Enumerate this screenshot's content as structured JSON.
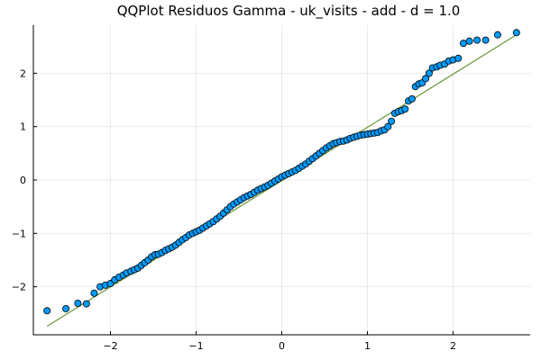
{
  "chart_data": {
    "type": "scatter",
    "title": "QQPlot Residuos Gamma - uk_visits - add - d = 1.0",
    "xlabel": "",
    "ylabel": "",
    "xlim": [
      -2.9,
      2.9
    ],
    "ylim": [
      -2.9,
      2.9
    ],
    "xticks": [
      -2,
      -1,
      0,
      1,
      2
    ],
    "yticks": [
      -2,
      -1,
      0,
      1,
      2
    ],
    "xtick_labels": [
      "−2",
      "−1",
      "0",
      "1",
      "2"
    ],
    "ytick_labels": [
      "−2",
      "−1",
      "0",
      "1",
      "2"
    ],
    "grid": true,
    "legend": "none",
    "marker_color": "#009af9",
    "reference_line_color": "#6b9a3a",
    "reference_line": {
      "x": [
        -2.74,
        2.74
      ],
      "y": [
        -2.74,
        2.72
      ]
    },
    "series": [
      {
        "x": [
          -2.74,
          -2.52,
          -2.38,
          -2.28,
          -2.19,
          -2.12,
          -2.06,
          -2.0,
          -1.95,
          -1.9,
          -1.85,
          -1.81,
          -1.76,
          -1.72,
          -1.68,
          -1.64,
          -1.6,
          -1.56,
          -1.52,
          -1.48,
          -1.44,
          -1.4,
          -1.36,
          -1.32,
          -1.28,
          -1.24,
          -1.2,
          -1.16,
          -1.12,
          -1.08,
          -1.04,
          -1.0,
          -0.96,
          -0.92,
          -0.88,
          -0.84,
          -0.8,
          -0.76,
          -0.72,
          -0.68,
          -0.64,
          -0.6,
          -0.56,
          -0.52,
          -0.48,
          -0.44,
          -0.4,
          -0.36,
          -0.32,
          -0.28,
          -0.24,
          -0.2,
          -0.16,
          -0.12,
          -0.08,
          -0.04,
          0.0,
          0.04,
          0.08,
          0.12,
          0.16,
          0.2,
          0.24,
          0.28,
          0.32,
          0.36,
          0.4,
          0.44,
          0.48,
          0.52,
          0.56,
          0.6,
          0.64,
          0.68,
          0.72,
          0.76,
          0.8,
          0.84,
          0.88,
          0.92,
          0.96,
          1.0,
          1.04,
          1.08,
          1.12,
          1.16,
          1.2,
          1.24,
          1.28,
          1.32,
          1.36,
          1.4,
          1.44,
          1.48,
          1.52,
          1.56,
          1.6,
          1.64,
          1.68,
          1.72,
          1.76,
          1.81,
          1.85,
          1.9,
          1.95,
          2.0,
          2.06,
          2.12,
          2.19,
          2.28,
          2.38,
          2.52,
          2.74
        ],
        "y": [
          -2.45,
          -2.41,
          -2.31,
          -2.32,
          -2.12,
          -2.0,
          -1.97,
          -1.94,
          -1.87,
          -1.82,
          -1.78,
          -1.74,
          -1.71,
          -1.68,
          -1.65,
          -1.6,
          -1.55,
          -1.5,
          -1.44,
          -1.4,
          -1.39,
          -1.36,
          -1.32,
          -1.29,
          -1.26,
          -1.22,
          -1.17,
          -1.12,
          -1.08,
          -1.03,
          -1.0,
          -0.97,
          -0.94,
          -0.9,
          -0.86,
          -0.82,
          -0.78,
          -0.73,
          -0.68,
          -0.62,
          -0.56,
          -0.5,
          -0.45,
          -0.41,
          -0.37,
          -0.33,
          -0.3,
          -0.27,
          -0.23,
          -0.19,
          -0.16,
          -0.13,
          -0.1,
          -0.06,
          -0.02,
          0.02,
          0.06,
          0.09,
          0.12,
          0.15,
          0.18,
          0.22,
          0.26,
          0.3,
          0.35,
          0.4,
          0.45,
          0.5,
          0.55,
          0.6,
          0.64,
          0.68,
          0.7,
          0.72,
          0.73,
          0.75,
          0.78,
          0.8,
          0.82,
          0.84,
          0.85,
          0.86,
          0.87,
          0.88,
          0.89,
          0.92,
          0.94,
          1.0,
          1.1,
          1.25,
          1.28,
          1.3,
          1.33,
          1.48,
          1.52,
          1.75,
          1.8,
          1.82,
          1.9,
          2.0,
          2.1,
          2.12,
          2.15,
          2.17,
          2.23,
          2.25,
          2.28,
          2.56,
          2.6,
          2.62,
          2.62,
          2.72,
          2.76
        ]
      }
    ]
  }
}
